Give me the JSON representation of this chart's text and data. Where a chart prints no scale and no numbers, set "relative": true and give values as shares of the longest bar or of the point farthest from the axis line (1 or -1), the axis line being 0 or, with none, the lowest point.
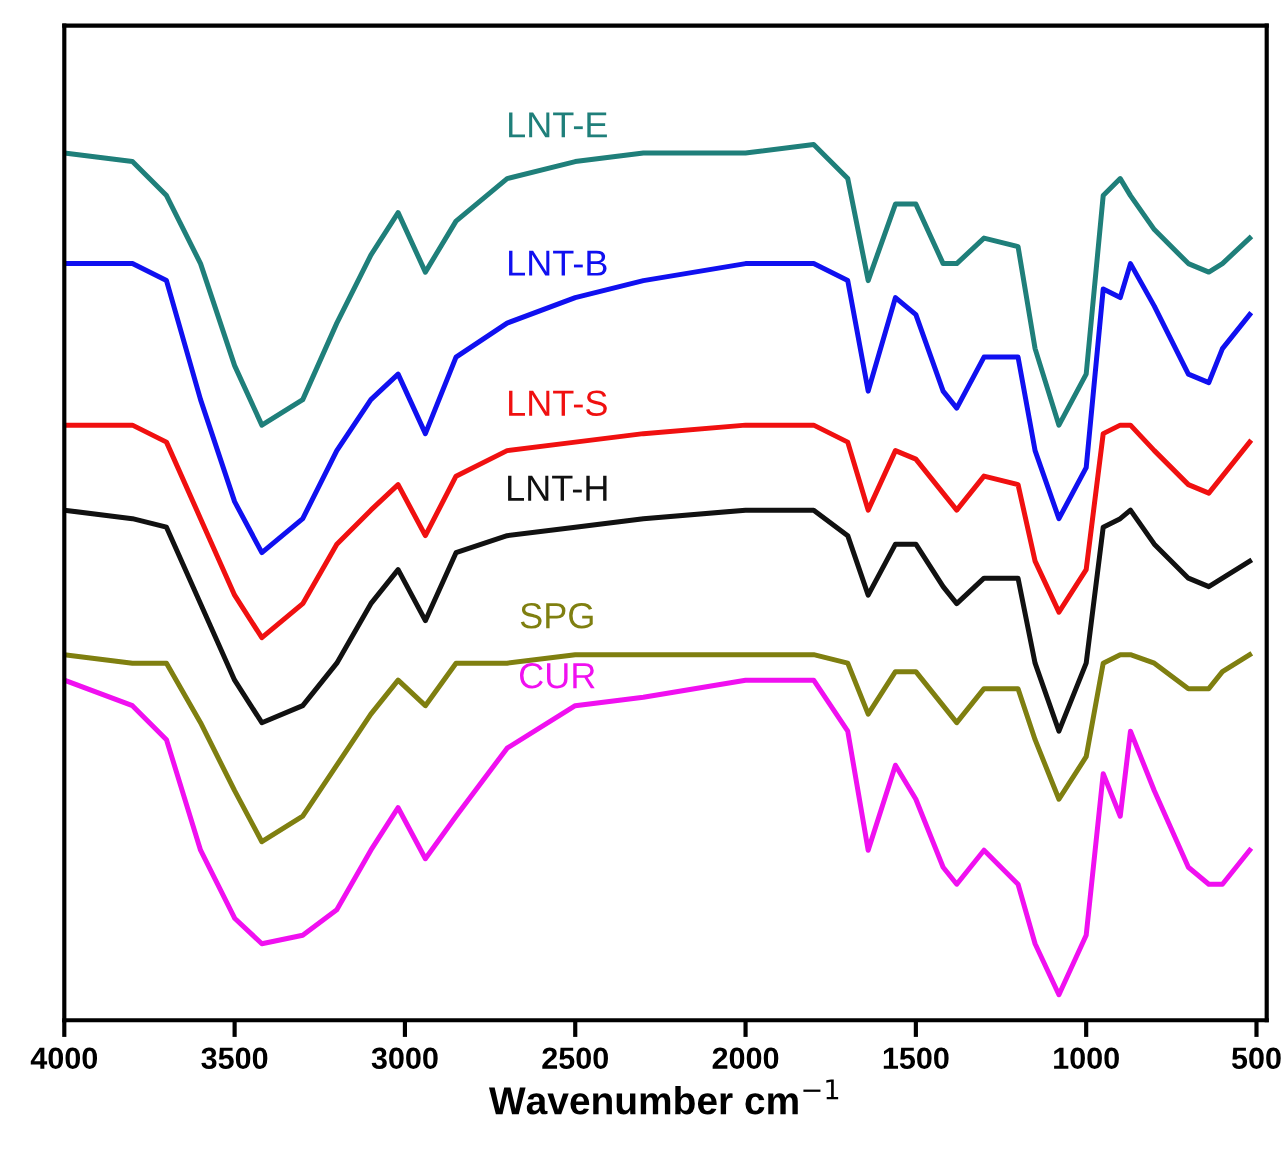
{
  "chart_data": {
    "type": "line",
    "relative": true,
    "xlabel": "Wavenumber cm$^{−1}$",
    "tick_labels": "x",
    "grid": false,
    "legend": false,
    "marker": "none",
    "line_style": "solid",
    "xlim": [
      4000,
      470
    ],
    "xticks": [
      4000,
      3500,
      3000,
      2500,
      2000,
      1500,
      1000,
      500
    ],
    "x": [
      4000,
      3800,
      3700,
      3600,
      3500,
      3420,
      3300,
      3200,
      3100,
      3020,
      2940,
      2850,
      2700,
      2500,
      2300,
      2000,
      1800,
      1700,
      1640,
      1560,
      1500,
      1420,
      1380,
      1300,
      1200,
      1150,
      1080,
      1000,
      950,
      900,
      870,
      800,
      700,
      640,
      600,
      520
    ],
    "series": [
      {
        "name": "LNT-E",
        "color": "#1f7f7a",
        "values": [
          0.99,
          0.98,
          0.94,
          0.86,
          0.74,
          0.67,
          0.7,
          0.79,
          0.87,
          0.92,
          0.85,
          0.91,
          0.96,
          0.98,
          0.99,
          0.99,
          1.0,
          0.96,
          0.84,
          0.93,
          0.93,
          0.86,
          0.86,
          0.89,
          0.88,
          0.76,
          0.67,
          0.73,
          0.94,
          0.96,
          0.94,
          0.9,
          0.86,
          0.85,
          0.86,
          0.89
        ]
      },
      {
        "name": "LNT-B",
        "color": "#1010f0",
        "values": [
          0.86,
          0.86,
          0.84,
          0.7,
          0.58,
          0.52,
          0.56,
          0.64,
          0.7,
          0.73,
          0.66,
          0.75,
          0.79,
          0.82,
          0.84,
          0.86,
          0.86,
          0.84,
          0.71,
          0.82,
          0.8,
          0.71,
          0.69,
          0.75,
          0.75,
          0.64,
          0.56,
          0.62,
          0.83,
          0.82,
          0.86,
          0.81,
          0.73,
          0.72,
          0.76,
          0.8
        ]
      },
      {
        "name": "LNT-S",
        "color": "#f01010",
        "values": [
          0.67,
          0.67,
          0.65,
          0.56,
          0.47,
          0.42,
          0.46,
          0.53,
          0.57,
          0.6,
          0.54,
          0.61,
          0.64,
          0.65,
          0.66,
          0.67,
          0.67,
          0.65,
          0.57,
          0.64,
          0.63,
          0.59,
          0.57,
          0.61,
          0.6,
          0.51,
          0.45,
          0.5,
          0.66,
          0.67,
          0.67,
          0.64,
          0.6,
          0.59,
          0.61,
          0.65
        ]
      },
      {
        "name": "LNT-H",
        "color": "#111111",
        "values": [
          0.57,
          0.56,
          0.55,
          0.46,
          0.37,
          0.32,
          0.34,
          0.39,
          0.46,
          0.5,
          0.44,
          0.52,
          0.54,
          0.55,
          0.56,
          0.57,
          0.57,
          0.54,
          0.47,
          0.53,
          0.53,
          0.48,
          0.46,
          0.49,
          0.49,
          0.39,
          0.31,
          0.39,
          0.55,
          0.56,
          0.57,
          0.53,
          0.49,
          0.48,
          0.49,
          0.51
        ]
      },
      {
        "name": "SPG",
        "color": "#7f7f10",
        "values": [
          0.4,
          0.39,
          0.39,
          0.32,
          0.24,
          0.18,
          0.21,
          0.27,
          0.33,
          0.37,
          0.34,
          0.39,
          0.39,
          0.4,
          0.4,
          0.4,
          0.4,
          0.39,
          0.33,
          0.38,
          0.38,
          0.34,
          0.32,
          0.36,
          0.36,
          0.3,
          0.23,
          0.28,
          0.39,
          0.4,
          0.4,
          0.39,
          0.36,
          0.36,
          0.38,
          0.4
        ]
      },
      {
        "name": "CUR",
        "color": "#f010f0",
        "values": [
          0.37,
          0.34,
          0.3,
          0.17,
          0.09,
          0.06,
          0.07,
          0.1,
          0.17,
          0.22,
          0.16,
          0.21,
          0.29,
          0.34,
          0.35,
          0.37,
          0.37,
          0.31,
          0.17,
          0.27,
          0.23,
          0.15,
          0.13,
          0.17,
          0.13,
          0.06,
          0.0,
          0.07,
          0.26,
          0.21,
          0.31,
          0.24,
          0.15,
          0.13,
          0.13,
          0.17
        ]
      }
    ]
  }
}
